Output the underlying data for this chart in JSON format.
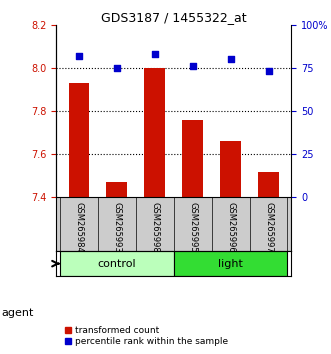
{
  "title": "GDS3187 / 1455322_at",
  "samples": [
    "GSM265984",
    "GSM265993",
    "GSM265998",
    "GSM265995",
    "GSM265996",
    "GSM265997"
  ],
  "red_values": [
    7.93,
    7.47,
    8.0,
    7.76,
    7.66,
    7.52
  ],
  "blue_values": [
    82,
    75,
    83,
    76,
    80,
    73
  ],
  "ylim_left": [
    7.4,
    8.2
  ],
  "ylim_right": [
    0,
    100
  ],
  "yticks_left": [
    7.4,
    7.6,
    7.8,
    8.0,
    8.2
  ],
  "yticks_right": [
    0,
    25,
    50,
    75,
    100
  ],
  "ytick_labels_right": [
    "0",
    "25",
    "50",
    "75",
    "100%"
  ],
  "hlines": [
    7.6,
    7.8,
    8.0
  ],
  "groups": [
    {
      "label": "control",
      "indices": [
        0,
        1,
        2
      ],
      "color": "#bbffbb"
    },
    {
      "label": "light",
      "indices": [
        3,
        4,
        5
      ],
      "color": "#33dd33"
    }
  ],
  "agent_label": "agent",
  "bar_color": "#cc1100",
  "dot_color": "#0000cc",
  "bar_width": 0.55,
  "sample_label_area_color": "#cccccc",
  "legend_red_label": "transformed count",
  "legend_blue_label": "percentile rank within the sample",
  "title_fontsize": 9,
  "tick_fontsize": 7,
  "sample_fontsize": 6,
  "legend_fontsize": 6.5
}
